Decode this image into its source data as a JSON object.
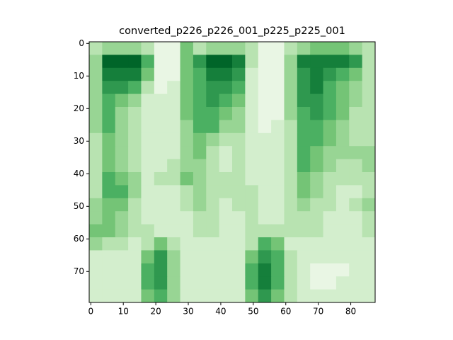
{
  "chart_data": {
    "type": "heatmap",
    "title": "converted_p226_p226_001_p225_p225_001",
    "colormap": "Greens",
    "x": [
      1.5,
      5.5,
      9.5,
      13.5,
      17.5,
      21.5,
      25.5,
      29.5,
      33.5,
      37.5,
      41.5,
      45.5,
      49.5,
      53.5,
      57.5,
      61.5,
      65.5,
      69.5,
      73.5,
      77.5,
      81.5,
      85.5
    ],
    "y": [
      1.5,
      5.5,
      9.5,
      13.5,
      17.5,
      21.5,
      25.5,
      29.5,
      33.5,
      37.5,
      41.5,
      45.5,
      49.5,
      53.5,
      57.5,
      61.5,
      65.5,
      69.5,
      73.5,
      77.5
    ],
    "z": [
      [
        0.3,
        0.4,
        0.4,
        0.4,
        0.3,
        0.1,
        0.1,
        0.5,
        0.3,
        0.4,
        0.4,
        0.4,
        0.3,
        0.1,
        0.1,
        0.3,
        0.4,
        0.5,
        0.5,
        0.5,
        0.4,
        0.3
      ],
      [
        0.4,
        0.9,
        0.9,
        0.9,
        0.6,
        0.1,
        0.1,
        0.5,
        0.7,
        0.9,
        0.9,
        0.8,
        0.3,
        0.1,
        0.1,
        0.4,
        0.8,
        0.8,
        0.8,
        0.8,
        0.7,
        0.3
      ],
      [
        0.4,
        0.8,
        0.8,
        0.8,
        0.5,
        0.1,
        0.1,
        0.5,
        0.6,
        0.8,
        0.8,
        0.7,
        0.2,
        0.1,
        0.1,
        0.4,
        0.7,
        0.8,
        0.7,
        0.6,
        0.5,
        0.3
      ],
      [
        0.4,
        0.7,
        0.7,
        0.6,
        0.3,
        0.1,
        0.2,
        0.5,
        0.6,
        0.7,
        0.7,
        0.6,
        0.2,
        0.1,
        0.1,
        0.4,
        0.7,
        0.8,
        0.6,
        0.5,
        0.4,
        0.3
      ],
      [
        0.4,
        0.6,
        0.5,
        0.4,
        0.2,
        0.2,
        0.2,
        0.5,
        0.6,
        0.7,
        0.6,
        0.5,
        0.2,
        0.1,
        0.1,
        0.4,
        0.7,
        0.7,
        0.6,
        0.5,
        0.4,
        0.3
      ],
      [
        0.4,
        0.6,
        0.4,
        0.3,
        0.2,
        0.2,
        0.2,
        0.5,
        0.6,
        0.6,
        0.5,
        0.4,
        0.2,
        0.1,
        0.1,
        0.4,
        0.6,
        0.7,
        0.6,
        0.5,
        0.3,
        0.3
      ],
      [
        0.4,
        0.6,
        0.4,
        0.3,
        0.2,
        0.2,
        0.2,
        0.4,
        0.6,
        0.6,
        0.4,
        0.4,
        0.2,
        0.1,
        0.2,
        0.3,
        0.6,
        0.6,
        0.5,
        0.4,
        0.3,
        0.3
      ],
      [
        0.3,
        0.5,
        0.4,
        0.3,
        0.2,
        0.2,
        0.2,
        0.4,
        0.5,
        0.4,
        0.3,
        0.3,
        0.2,
        0.2,
        0.2,
        0.3,
        0.6,
        0.6,
        0.5,
        0.4,
        0.3,
        0.3
      ],
      [
        0.3,
        0.5,
        0.4,
        0.3,
        0.2,
        0.2,
        0.2,
        0.4,
        0.5,
        0.3,
        0.2,
        0.3,
        0.2,
        0.2,
        0.2,
        0.3,
        0.6,
        0.5,
        0.4,
        0.4,
        0.4,
        0.4
      ],
      [
        0.3,
        0.5,
        0.4,
        0.3,
        0.2,
        0.2,
        0.3,
        0.4,
        0.4,
        0.3,
        0.2,
        0.3,
        0.2,
        0.2,
        0.2,
        0.3,
        0.6,
        0.5,
        0.4,
        0.3,
        0.3,
        0.4
      ],
      [
        0.3,
        0.6,
        0.5,
        0.4,
        0.2,
        0.3,
        0.3,
        0.5,
        0.4,
        0.3,
        0.3,
        0.3,
        0.2,
        0.2,
        0.2,
        0.3,
        0.5,
        0.4,
        0.3,
        0.3,
        0.3,
        0.3
      ],
      [
        0.3,
        0.6,
        0.6,
        0.4,
        0.2,
        0.2,
        0.2,
        0.3,
        0.4,
        0.3,
        0.3,
        0.3,
        0.3,
        0.2,
        0.2,
        0.3,
        0.5,
        0.4,
        0.3,
        0.2,
        0.2,
        0.3
      ],
      [
        0.4,
        0.5,
        0.5,
        0.3,
        0.2,
        0.2,
        0.2,
        0.3,
        0.4,
        0.3,
        0.2,
        0.3,
        0.3,
        0.2,
        0.2,
        0.3,
        0.4,
        0.3,
        0.3,
        0.2,
        0.3,
        0.4
      ],
      [
        0.4,
        0.5,
        0.4,
        0.3,
        0.2,
        0.2,
        0.2,
        0.2,
        0.3,
        0.3,
        0.2,
        0.2,
        0.3,
        0.2,
        0.2,
        0.3,
        0.3,
        0.3,
        0.2,
        0.2,
        0.2,
        0.3
      ],
      [
        0.5,
        0.5,
        0.4,
        0.3,
        0.3,
        0.2,
        0.2,
        0.2,
        0.3,
        0.3,
        0.2,
        0.2,
        0.3,
        0.3,
        0.3,
        0.3,
        0.3,
        0.3,
        0.2,
        0.2,
        0.2,
        0.3
      ],
      [
        0.4,
        0.3,
        0.3,
        0.2,
        0.3,
        0.5,
        0.3,
        0.2,
        0.2,
        0.2,
        0.2,
        0.2,
        0.3,
        0.6,
        0.5,
        0.2,
        0.2,
        0.2,
        0.2,
        0.2,
        0.2,
        0.2
      ],
      [
        0.2,
        0.2,
        0.2,
        0.2,
        0.5,
        0.7,
        0.4,
        0.2,
        0.2,
        0.2,
        0.2,
        0.2,
        0.5,
        0.7,
        0.6,
        0.3,
        0.2,
        0.2,
        0.2,
        0.2,
        0.2,
        0.2
      ],
      [
        0.2,
        0.2,
        0.2,
        0.2,
        0.6,
        0.7,
        0.4,
        0.2,
        0.2,
        0.2,
        0.2,
        0.2,
        0.6,
        0.8,
        0.6,
        0.3,
        0.2,
        0.1,
        0.1,
        0.1,
        0.2,
        0.2
      ],
      [
        0.2,
        0.2,
        0.2,
        0.2,
        0.6,
        0.7,
        0.4,
        0.2,
        0.2,
        0.2,
        0.2,
        0.2,
        0.6,
        0.8,
        0.6,
        0.3,
        0.2,
        0.1,
        0.1,
        0.2,
        0.2,
        0.2
      ],
      [
        0.2,
        0.2,
        0.2,
        0.2,
        0.5,
        0.6,
        0.4,
        0.2,
        0.2,
        0.2,
        0.2,
        0.2,
        0.5,
        0.7,
        0.5,
        0.3,
        0.2,
        0.2,
        0.2,
        0.2,
        0.2,
        0.2
      ]
    ],
    "xlim": [
      -0.5,
      87.5
    ],
    "ylim": [
      79.5,
      -0.5
    ],
    "xticks": [
      0,
      10,
      20,
      30,
      40,
      50,
      60,
      70,
      80
    ],
    "yticks": [
      0,
      10,
      20,
      30,
      40,
      50,
      60,
      70
    ]
  }
}
